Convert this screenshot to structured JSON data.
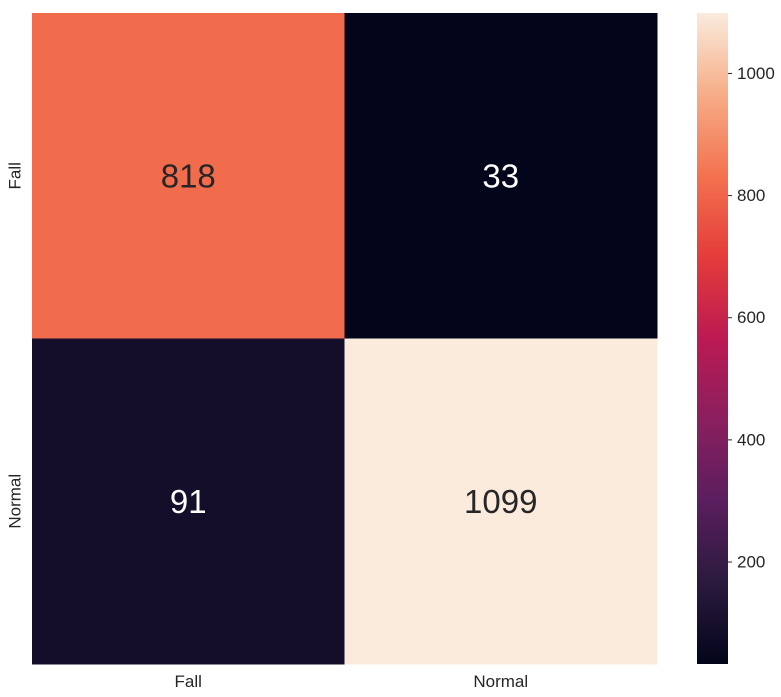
{
  "chart_data": {
    "type": "heatmap",
    "title": "",
    "xlabel": "",
    "ylabel": "",
    "x_categories": [
      "Fall",
      "Normal"
    ],
    "y_categories": [
      "Fall",
      "Normal"
    ],
    "values": [
      [
        818,
        33
      ],
      [
        91,
        1099
      ]
    ],
    "colormap": "rocket",
    "colorbar": {
      "min": 33,
      "max": 1099,
      "ticks": [
        200,
        400,
        600,
        800,
        1000
      ],
      "tick_labels": [
        "200",
        "400",
        "600",
        "800",
        "1000"
      ],
      "position": "right"
    },
    "annotation_colors": {
      "light_text": "#ffffff",
      "dark_text": "#262626"
    }
  }
}
